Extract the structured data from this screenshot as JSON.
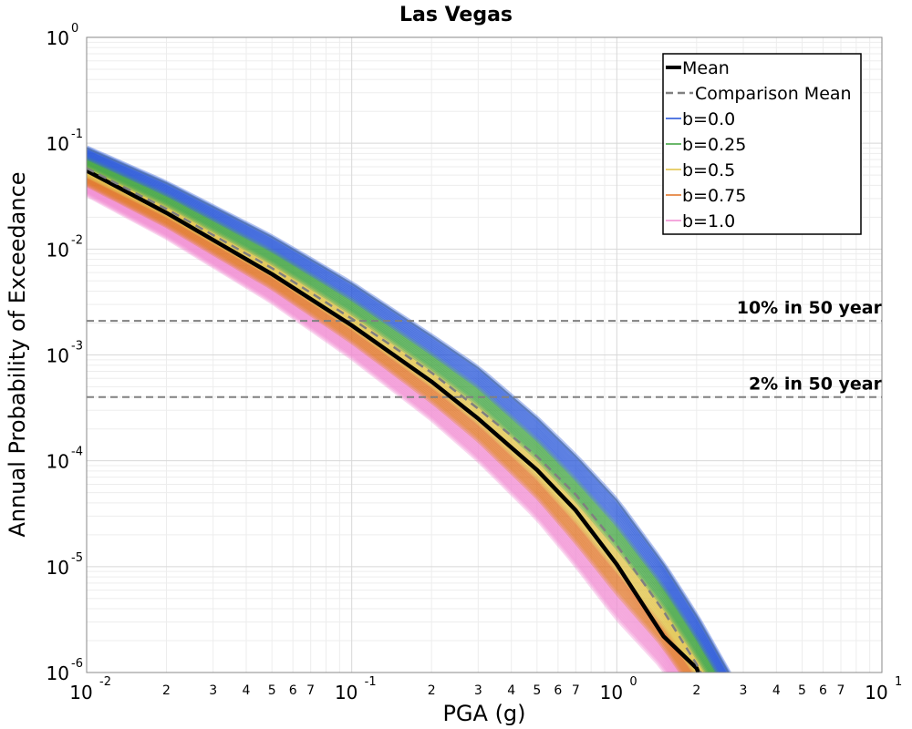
{
  "chart_data": {
    "type": "line",
    "title": "Las Vegas",
    "xlabel": "PGA (g)",
    "ylabel": "Annual Probability of Exceedance",
    "x_scale": "log",
    "y_scale": "log",
    "xlim": [
      0.01,
      10
    ],
    "ylim": [
      1e-06,
      1
    ],
    "grid": true,
    "legend_position": "top-right",
    "x_major_ticks": [
      {
        "base": "10",
        "exp": "-2"
      },
      {
        "base": "10",
        "exp": "-1"
      },
      {
        "base": "10",
        "exp": "0"
      },
      {
        "base": "10",
        "exp": "1"
      }
    ],
    "y_major_ticks": [
      {
        "base": "10",
        "exp": "0"
      },
      {
        "base": "10",
        "exp": "-1"
      },
      {
        "base": "10",
        "exp": "-2"
      },
      {
        "base": "10",
        "exp": "-3"
      },
      {
        "base": "10",
        "exp": "-4"
      },
      {
        "base": "10",
        "exp": "-5"
      },
      {
        "base": "10",
        "exp": "-6"
      }
    ],
    "x_minor_tick_labels": [
      "2",
      "3",
      "4",
      "5",
      "6",
      "7"
    ],
    "series": [
      {
        "name": "Mean",
        "color": "#000000",
        "style": "solid",
        "x": [
          0.01,
          0.02,
          0.05,
          0.1,
          0.2,
          0.3,
          0.5,
          0.7,
          1.0,
          1.5,
          2.0,
          2.2
        ],
        "y": [
          0.055,
          0.022,
          0.0058,
          0.0019,
          0.00056,
          0.00025,
          8.2e-05,
          3.4e-05,
          1.05e-05,
          2.2e-06,
          1.1e-06,
          6e-07
        ]
      },
      {
        "name": "Comparison Mean",
        "color": "#808080",
        "style": "dashed",
        "x": [
          0.01,
          0.02,
          0.05,
          0.1,
          0.2,
          0.3,
          0.5,
          0.7,
          1.0,
          1.5,
          2.0,
          2.5
        ],
        "y": [
          0.058,
          0.024,
          0.0066,
          0.0022,
          0.00068,
          0.00031,
          0.00011,
          4.8e-05,
          1.6e-05,
          3.8e-06,
          1.2e-06,
          4e-07
        ]
      },
      {
        "name": "b=0.0",
        "color": "#1f4fd8"
      },
      {
        "name": "b=0.25",
        "color": "#3aa03a"
      },
      {
        "name": "b=0.5",
        "color": "#e0c040"
      },
      {
        "name": "b=0.75",
        "color": "#e07020"
      },
      {
        "name": "b=1.0",
        "color": "#f08ad0"
      }
    ],
    "band": {
      "upper": {
        "x": [
          0.01,
          0.02,
          0.05,
          0.1,
          0.2,
          0.3,
          0.5,
          0.7,
          1.0,
          1.5,
          2.0,
          2.7
        ],
        "y": [
          0.09,
          0.042,
          0.013,
          0.0047,
          0.0015,
          0.00075,
          0.00025,
          0.00011,
          4.2e-05,
          1.05e-05,
          3.4e-06,
          9e-07
        ]
      },
      "lower": {
        "x": [
          0.01,
          0.02,
          0.05,
          0.1,
          0.2,
          0.3,
          0.5,
          0.7,
          1.0,
          1.5,
          1.7
        ],
        "y": [
          0.033,
          0.013,
          0.0032,
          0.00095,
          0.00025,
          0.000103,
          2.9e-05,
          1.05e-05,
          3.3e-06,
          1.1e-06,
          7e-07
        ]
      }
    },
    "reference_lines": [
      {
        "label": "10% in 50 year",
        "y": 0.0021,
        "color": "#808080",
        "style": "dashed"
      },
      {
        "label": "2% in 50 year",
        "y": 0.0004,
        "color": "#808080",
        "style": "dashed"
      }
    ]
  }
}
